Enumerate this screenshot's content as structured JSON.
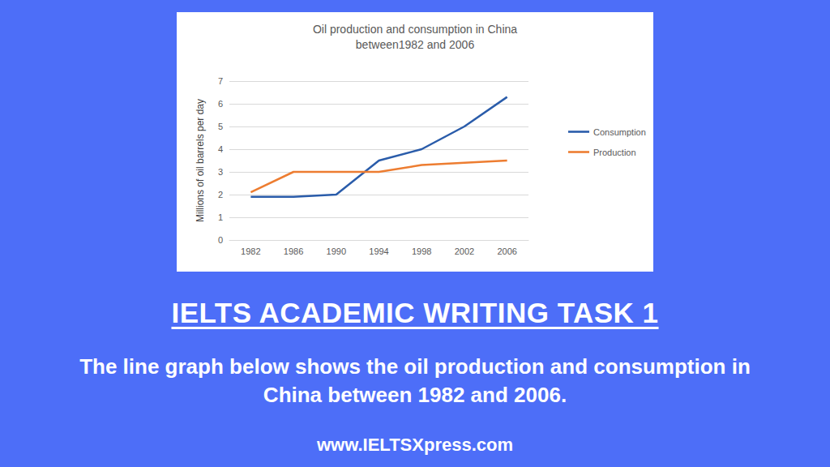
{
  "chart_data": {
    "type": "line",
    "title": "Oil production and consumption in China\nbetween1982 and 2006",
    "y_label": "Millions of oil barrels per day",
    "categories": [
      "1982",
      "1986",
      "1990",
      "1994",
      "1998",
      "2002",
      "2006"
    ],
    "series": [
      {
        "name": "Consumption",
        "color": "#2a5caa",
        "values": [
          1.9,
          1.9,
          2.0,
          3.5,
          4.0,
          5.0,
          6.3
        ]
      },
      {
        "name": "Production",
        "color": "#ed7d31",
        "values": [
          2.1,
          3.0,
          3.0,
          3.0,
          3.3,
          3.4,
          3.5
        ]
      }
    ],
    "ylim": [
      0,
      7
    ],
    "yticks": [
      0,
      1,
      2,
      3,
      4,
      5,
      6,
      7
    ],
    "grid": true,
    "legend": "right",
    "annotations": [
      "IELTS ACADEMIC WRITING TASK 1",
      "The line graph below shows the oil production and consumption in China between 1982 and 2006.",
      "www.IELTSXpress.com"
    ]
  }
}
